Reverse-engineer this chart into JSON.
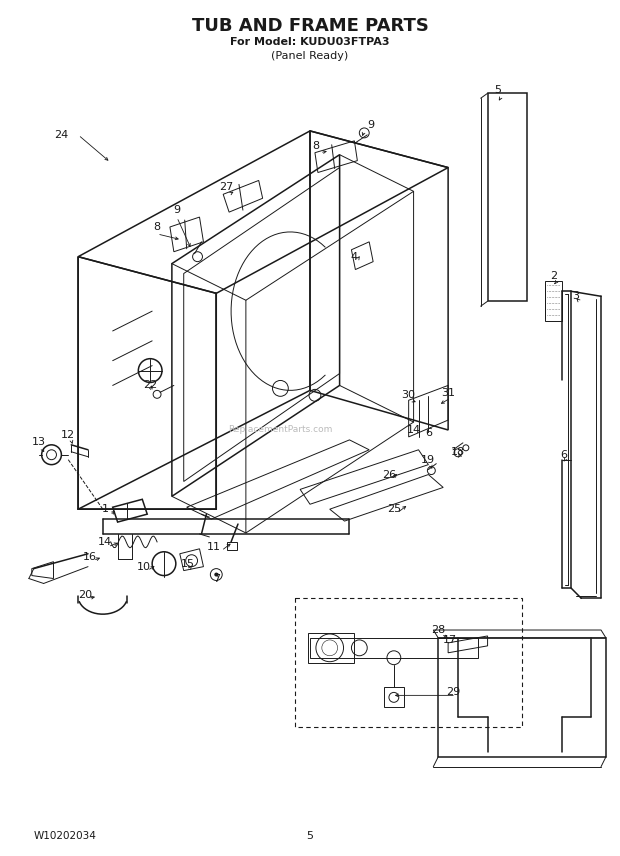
{
  "title": "TUB AND FRAME PARTS",
  "subtitle1": "For Model: KUDU03FTPA3",
  "subtitle2": "(Panel Ready)",
  "footer_left": "W10202034",
  "footer_center": "5",
  "bg_color": "#ffffff",
  "lc": "#1a1a1a",
  "watermark": "ReplacementParts.com"
}
